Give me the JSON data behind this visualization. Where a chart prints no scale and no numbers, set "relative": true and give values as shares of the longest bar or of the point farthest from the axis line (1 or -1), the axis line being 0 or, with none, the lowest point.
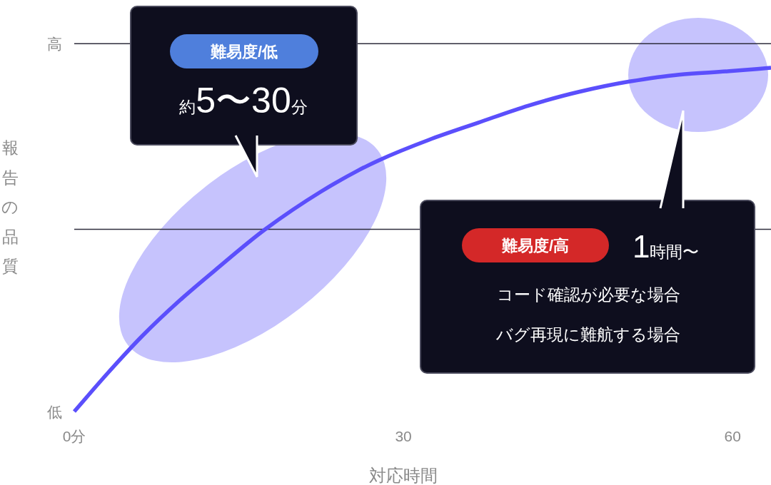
{
  "chart_data": {
    "type": "line",
    "relative": true,
    "xlabel": "対応時間",
    "ylabel": "報告の品質",
    "x": [
      0,
      3.0,
      6.2,
      9.5,
      12.8,
      17.4,
      22.5,
      25.8,
      27.7,
      32.3,
      36.8,
      41.4,
      46.0,
      50.6,
      55.1,
      59.7,
      63.5
    ],
    "series": [
      {
        "color": "#5b4ffc",
        "values": [
          0,
          0.11,
          0.22,
          0.32,
          0.41,
          0.53,
          0.64,
          0.7,
          0.73,
          0.79,
          0.84,
          0.89,
          0.93,
          0.96,
          0.98,
          0.99,
          1
        ]
      }
    ],
    "xlim": [
      0,
      63.5
    ],
    "xticks": [
      {
        "value": 0,
        "label": "0分"
      },
      30,
      60
    ],
    "ref_lines": [
      {
        "axis": "y",
        "value": 0.53,
        "color": "#2e2d3d"
      },
      {
        "axis": "y",
        "value": 1.07,
        "color": "#2e2d3d"
      }
    ],
    "annotations": [
      "難易度/低",
      "約5〜30分",
      "難易度/高",
      "1時間〜",
      "コード確認が必要な場合",
      "バグ再現に難航する場合",
      {
        "text": "高",
        "x": 0,
        "y": 1.07
      },
      {
        "text": "低",
        "x": 0,
        "y": 0
      }
    ]
  }
}
